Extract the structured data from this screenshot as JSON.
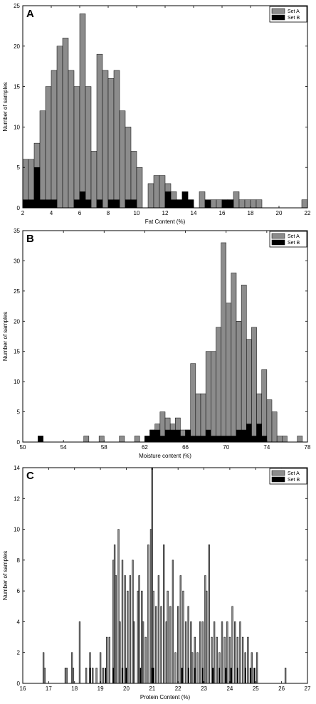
{
  "colors": {
    "setA": "#8c8c8c",
    "setB": "#000000",
    "axis": "#000000",
    "background": "#ffffff"
  },
  "chart_data": [
    {
      "type": "bar",
      "panel_label": "A",
      "xlabel": "Fat Content (%)",
      "ylabel": "Number of samples",
      "xlim": [
        2,
        22
      ],
      "ylim": [
        0,
        25
      ],
      "xticks": [
        2,
        4,
        6,
        8,
        10,
        12,
        14,
        16,
        18,
        20,
        22
      ],
      "yticks": [
        0,
        5,
        10,
        15,
        20,
        25
      ],
      "bin_width": 0.4,
      "legend_position": "top-right",
      "series": [
        {
          "name": "Set A",
          "x": [
            2.2,
            2.6,
            3.0,
            3.4,
            3.8,
            4.2,
            4.6,
            5.0,
            5.4,
            5.8,
            6.2,
            6.6,
            7.0,
            7.4,
            7.8,
            8.2,
            8.6,
            9.0,
            9.4,
            9.8,
            10.2,
            11.0,
            11.4,
            11.8,
            12.2,
            12.6,
            13.0,
            13.4,
            13.8,
            14.6,
            15.4,
            15.8,
            16.2,
            16.6,
            17.0,
            17.4,
            17.8,
            18.2,
            18.6,
            21.8
          ],
          "values": [
            6,
            6,
            8,
            12,
            15,
            17,
            20,
            21,
            17,
            15,
            24,
            15,
            7,
            19,
            17,
            16,
            17,
            12,
            10,
            7,
            5,
            3,
            4,
            4,
            3,
            2,
            1,
            2,
            1,
            2,
            1,
            1,
            1,
            1,
            2,
            1,
            1,
            1,
            1,
            1
          ]
        },
        {
          "name": "Set B",
          "x": [
            2.2,
            2.6,
            3.0,
            3.4,
            3.8,
            4.2,
            5.8,
            6.2,
            6.6,
            7.4,
            8.2,
            8.6,
            9.4,
            9.8,
            12.2,
            12.6,
            13.0,
            13.4,
            13.8,
            15.0,
            16.2,
            16.6
          ],
          "values": [
            1,
            1,
            5,
            1,
            1,
            1,
            1,
            2,
            1,
            1,
            1,
            1,
            1,
            1,
            2,
            1,
            1,
            2,
            1,
            1,
            1,
            1
          ]
        }
      ]
    },
    {
      "type": "bar",
      "panel_label": "B",
      "xlabel": "Moisture content (%)",
      "ylabel": "Number of samples",
      "xlim": [
        50,
        78
      ],
      "ylim": [
        0,
        35
      ],
      "xticks": [
        50,
        54,
        58,
        62,
        66,
        70,
        74,
        78
      ],
      "yticks": [
        0,
        5,
        10,
        15,
        20,
        25,
        30,
        35
      ],
      "bin_width": 0.5,
      "legend_position": "top-right",
      "series": [
        {
          "name": "Set A",
          "x": [
            51.75,
            56.25,
            57.75,
            59.75,
            61.25,
            62.25,
            62.75,
            63.25,
            63.75,
            64.25,
            64.75,
            65.25,
            65.75,
            66.25,
            66.75,
            67.25,
            67.75,
            68.25,
            68.75,
            69.25,
            69.75,
            70.25,
            70.75,
            71.25,
            71.75,
            72.25,
            72.75,
            73.25,
            73.75,
            74.25,
            74.75,
            75.25,
            75.75,
            77.25
          ],
          "values": [
            1,
            1,
            1,
            1,
            1,
            1,
            2,
            3,
            5,
            4,
            3,
            4,
            2,
            2,
            13,
            8,
            8,
            15,
            15,
            19,
            33,
            23,
            28,
            20,
            26,
            17,
            19,
            8,
            12,
            7,
            5,
            1,
            1,
            1
          ]
        },
        {
          "name": "Set B",
          "x": [
            51.75,
            62.25,
            62.75,
            63.25,
            63.75,
            64.25,
            64.75,
            65.25,
            65.75,
            66.25,
            66.75,
            67.25,
            67.75,
            68.25,
            68.75,
            69.25,
            69.75,
            70.25,
            70.75,
            71.25,
            71.75,
            72.25,
            72.75,
            73.25,
            73.75
          ],
          "values": [
            1,
            1,
            2,
            2,
            1,
            2,
            2,
            2,
            1,
            2,
            1,
            1,
            1,
            2,
            1,
            1,
            1,
            1,
            1,
            2,
            2,
            3,
            1,
            3,
            1
          ]
        }
      ]
    },
    {
      "type": "bar",
      "panel_label": "C",
      "xlabel": "Protein Content (%)",
      "ylabel": "Number of samples",
      "xlim": [
        16,
        27
      ],
      "ylim": [
        0,
        14
      ],
      "xticks": [
        16,
        17,
        18,
        19,
        20,
        21,
        22,
        23,
        24,
        25,
        26,
        27
      ],
      "yticks": [
        0,
        2,
        4,
        6,
        8,
        10,
        12,
        14
      ],
      "bin_width": 0.05,
      "legend_position": "top-right",
      "series": [
        {
          "name": "Set A",
          "x": [
            16.8,
            16.85,
            17.65,
            17.7,
            17.9,
            17.95,
            18.2,
            18.45,
            18.6,
            18.7,
            18.85,
            19.0,
            19.1,
            19.25,
            19.35,
            19.5,
            19.55,
            19.6,
            19.7,
            19.75,
            19.85,
            19.95,
            20.05,
            20.15,
            20.25,
            20.3,
            20.45,
            20.5,
            20.6,
            20.65,
            20.75,
            20.85,
            20.95,
            21.0,
            21.05,
            21.15,
            21.25,
            21.35,
            21.45,
            21.55,
            21.6,
            21.7,
            21.8,
            21.9,
            22.0,
            22.1,
            22.2,
            22.3,
            22.4,
            22.5,
            22.55,
            22.65,
            22.75,
            22.85,
            22.95,
            23.05,
            23.1,
            23.2,
            23.3,
            23.4,
            23.5,
            23.6,
            23.7,
            23.8,
            23.9,
            24.0,
            24.1,
            24.2,
            24.3,
            24.4,
            24.5,
            24.6,
            24.7,
            24.85,
            25.05,
            26.15
          ],
          "values": [
            2,
            1,
            1,
            1,
            2,
            1,
            4,
            1,
            2,
            1,
            1,
            2,
            1,
            3,
            3,
            8,
            9,
            7,
            10,
            4,
            8,
            7,
            6,
            7,
            8,
            4,
            6,
            7,
            6,
            4,
            3,
            9,
            10,
            14,
            6,
            5,
            7,
            5,
            9,
            4,
            6,
            5,
            8,
            2,
            5,
            7,
            6,
            4,
            5,
            4,
            2,
            3,
            2,
            4,
            4,
            7,
            6,
            9,
            3,
            4,
            3,
            2,
            4,
            3,
            4,
            3,
            5,
            4,
            3,
            4,
            3,
            2,
            3,
            2,
            2,
            1
          ]
        },
        {
          "name": "Set B",
          "x": [
            18.6,
            19.2,
            19.5,
            19.85,
            20.0,
            20.55,
            21.0,
            21.05,
            22.15,
            22.4,
            22.65,
            22.95,
            23.35,
            23.6,
            23.85,
            24.05,
            24.3,
            24.6,
            24.8,
            24.95
          ],
          "values": [
            1,
            1,
            1,
            1,
            1,
            1,
            1,
            1,
            1,
            1,
            1,
            1,
            1,
            1,
            1,
            1,
            1,
            1,
            1,
            1
          ]
        }
      ]
    }
  ]
}
